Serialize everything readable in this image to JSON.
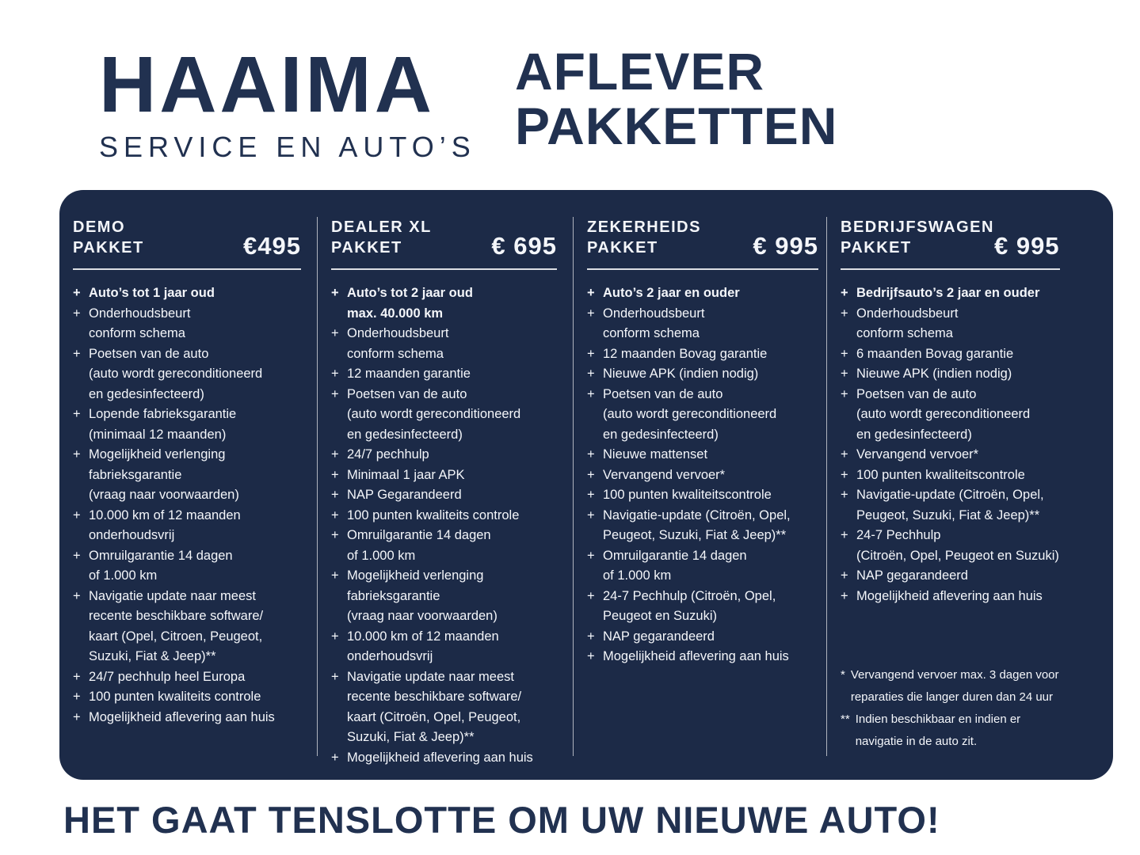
{
  "colors": {
    "page_bg": "#ffffff",
    "panel_bg": "#1c2a47",
    "panel_text": "#f4f6fa",
    "navy": "#213150"
  },
  "glyphs": {
    "plus": "+"
  },
  "header": {
    "logo_title": "HAAIMA",
    "logo_subtitle": "SERVICE EN AUTO’S",
    "page_title": "AFLEVER\nPAKKETTEN"
  },
  "packages": [
    {
      "name": "DEMO\nPAKKET",
      "price": "€495",
      "items": [
        {
          "text": "Auto’s tot 1 jaar oud",
          "bold": true
        },
        {
          "text": "Onderhoudsbeurt\nconform schema"
        },
        {
          "text": "Poetsen van de auto\n(auto wordt gereconditioneerd\nen gedesinfecteerd)"
        },
        {
          "text": "Lopende fabrieksgarantie\n(minimaal 12 maanden)"
        },
        {
          "text": "Mogelijkheid verlenging\nfabrieksgarantie\n(vraag naar voorwaarden)"
        },
        {
          "text": "10.000 km of 12 maanden\nonderhoudsvrij"
        },
        {
          "text": "Omruilgarantie 14 dagen\nof 1.000 km"
        },
        {
          "text": "Navigatie update naar meest\nrecente beschikbare software/\nkaart (Opel, Citroen,  Peugeot,\nSuzuki, Fiat & Jeep)**"
        },
        {
          "text": "24/7 pechhulp heel Europa"
        },
        {
          "text": "100 punten kwaliteits controle"
        },
        {
          "text": "Mogelijkheid aflevering aan huis"
        }
      ],
      "footnotes": []
    },
    {
      "name": "DEALER XL\nPAKKET",
      "price": "€ 695",
      "items": [
        {
          "text": "Auto’s tot 2 jaar oud\nmax. 40.000 km",
          "bold": true
        },
        {
          "text": "Onderhoudsbeurt\nconform schema"
        },
        {
          "text": "12 maanden garantie"
        },
        {
          "text": "Poetsen van de auto\n(auto wordt gereconditioneerd\nen gedesinfecteerd)"
        },
        {
          "text": "24/7 pechhulp"
        },
        {
          "text": "Minimaal 1 jaar APK"
        },
        {
          "text": "NAP Gegarandeerd"
        },
        {
          "text": "100 punten kwaliteits controle"
        },
        {
          "text": "Omruilgarantie 14 dagen\nof 1.000 km"
        },
        {
          "text": "Mogelijkheid verlenging\nfabrieksgarantie\n(vraag naar voorwaarden)"
        },
        {
          "text": "10.000 km of 12 maanden\nonderhoudsvrij"
        },
        {
          "text": "Navigatie update naar meest\nrecente beschikbare software/\nkaart (Citroën, Opel, Peugeot,\nSuzuki, Fiat & Jeep)**"
        },
        {
          "text": "Mogelijkheid aflevering aan huis"
        }
      ],
      "footnotes": []
    },
    {
      "name": "ZEKERHEIDS\nPAKKET",
      "price": "€ 995",
      "items": [
        {
          "text": "Auto’s 2 jaar en ouder",
          "bold": true
        },
        {
          "text": "Onderhoudsbeurt\nconform schema"
        },
        {
          "text": "12 maanden Bovag garantie"
        },
        {
          "text": "Nieuwe APK (indien nodig)"
        },
        {
          "text": "Poetsen van de auto\n(auto wordt gereconditioneerd\nen gedesinfecteerd)"
        },
        {
          "text": "Nieuwe mattenset"
        },
        {
          "text": "Vervangend vervoer*"
        },
        {
          "text": "100 punten kwaliteitscontrole"
        },
        {
          "text": "Navigatie-update (Citroën, Opel,\nPeugeot, Suzuki, Fiat & Jeep)**"
        },
        {
          "text": "Omruilgarantie 14 dagen\nof 1.000 km"
        },
        {
          "text": "24-7 Pechhulp (Citroën, Opel,\nPeugeot en Suzuki)"
        },
        {
          "text": "NAP gegarandeerd"
        },
        {
          "text": "Mogelijkheid aflevering aan huis"
        }
      ],
      "footnotes": []
    },
    {
      "name": "BEDRIJFSWAGEN\nPAKKET",
      "price": "€ 995",
      "items": [
        {
          "text": "Bedrijfsauto’s 2 jaar en ouder",
          "bold": true
        },
        {
          "text": "Onderhoudsbeurt\nconform schema"
        },
        {
          "text": "6 maanden Bovag garantie"
        },
        {
          "text": "Nieuwe APK (indien nodig)"
        },
        {
          "text": "Poetsen van de auto\n(auto wordt gereconditioneerd\nen gedesinfecteerd)"
        },
        {
          "text": "Vervangend vervoer*"
        },
        {
          "text": "100 punten kwaliteitscontrole"
        },
        {
          "text": "Navigatie-update (Citroën, Opel,\nPeugeot, Suzuki, Fiat & Jeep)**"
        },
        {
          "text": "24-7 Pechhulp\n(Citroën, Opel, Peugeot en Suzuki)"
        },
        {
          "text": "NAP gegarandeerd"
        },
        {
          "text": "Mogelijkheid aflevering aan huis"
        }
      ],
      "footnotes": [
        {
          "marker": "*",
          "text": "Vervangend vervoer max. 3 dagen voor\nreparaties die langer duren dan 24 uur"
        },
        {
          "marker": "**",
          "text": "Indien beschikbaar en indien er\nnavigatie in de auto zit."
        }
      ]
    }
  ],
  "tagline": "HET GAAT TENSLOTTE OM UW NIEUWE AUTO!"
}
